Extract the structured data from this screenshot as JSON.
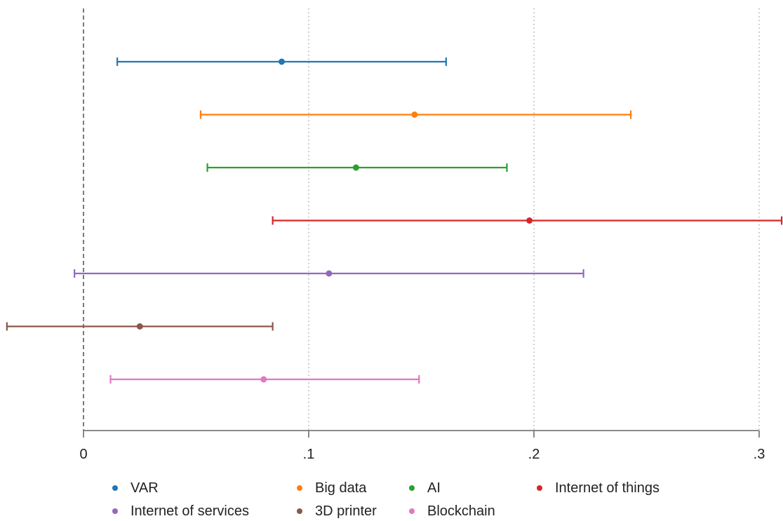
{
  "chart_data": {
    "type": "coefficient-plot",
    "orientation": "horizontal",
    "title": "",
    "xlabel": "",
    "ylabel": "",
    "xlim": [
      -0.034,
      0.31
    ],
    "xticks": [
      {
        "value": 0,
        "label": "0"
      },
      {
        "value": 0.1,
        "label": ".1"
      },
      {
        "value": 0.2,
        "label": ".2"
      },
      {
        "value": 0.3,
        "label": ".3"
      }
    ],
    "grid": "vertical dotted at ticks",
    "reference_line": {
      "value": 0,
      "style": "dashed"
    },
    "legend_position": "bottom",
    "series": [
      {
        "name": "VAR",
        "estimate": 0.088,
        "ci_low": 0.015,
        "ci_high": 0.161,
        "color": "#1f77b4"
      },
      {
        "name": "Big data",
        "estimate": 0.147,
        "ci_low": 0.052,
        "ci_high": 0.243,
        "color": "#ff7f0e"
      },
      {
        "name": "AI",
        "estimate": 0.121,
        "ci_low": 0.055,
        "ci_high": 0.188,
        "color": "#2ca02c"
      },
      {
        "name": "Internet of things",
        "estimate": 0.198,
        "ci_low": 0.084,
        "ci_high": 0.31,
        "color": "#d62728"
      },
      {
        "name": "Internet of services",
        "estimate": 0.109,
        "ci_low": -0.004,
        "ci_high": 0.222,
        "color": "#9467bd"
      },
      {
        "name": "3D printer",
        "estimate": 0.025,
        "ci_low": -0.034,
        "ci_high": 0.084,
        "color": "#8c564b"
      },
      {
        "name": "Blockchain",
        "estimate": 0.08,
        "ci_low": 0.012,
        "ci_high": 0.149,
        "color": "#e377c2"
      }
    ]
  }
}
